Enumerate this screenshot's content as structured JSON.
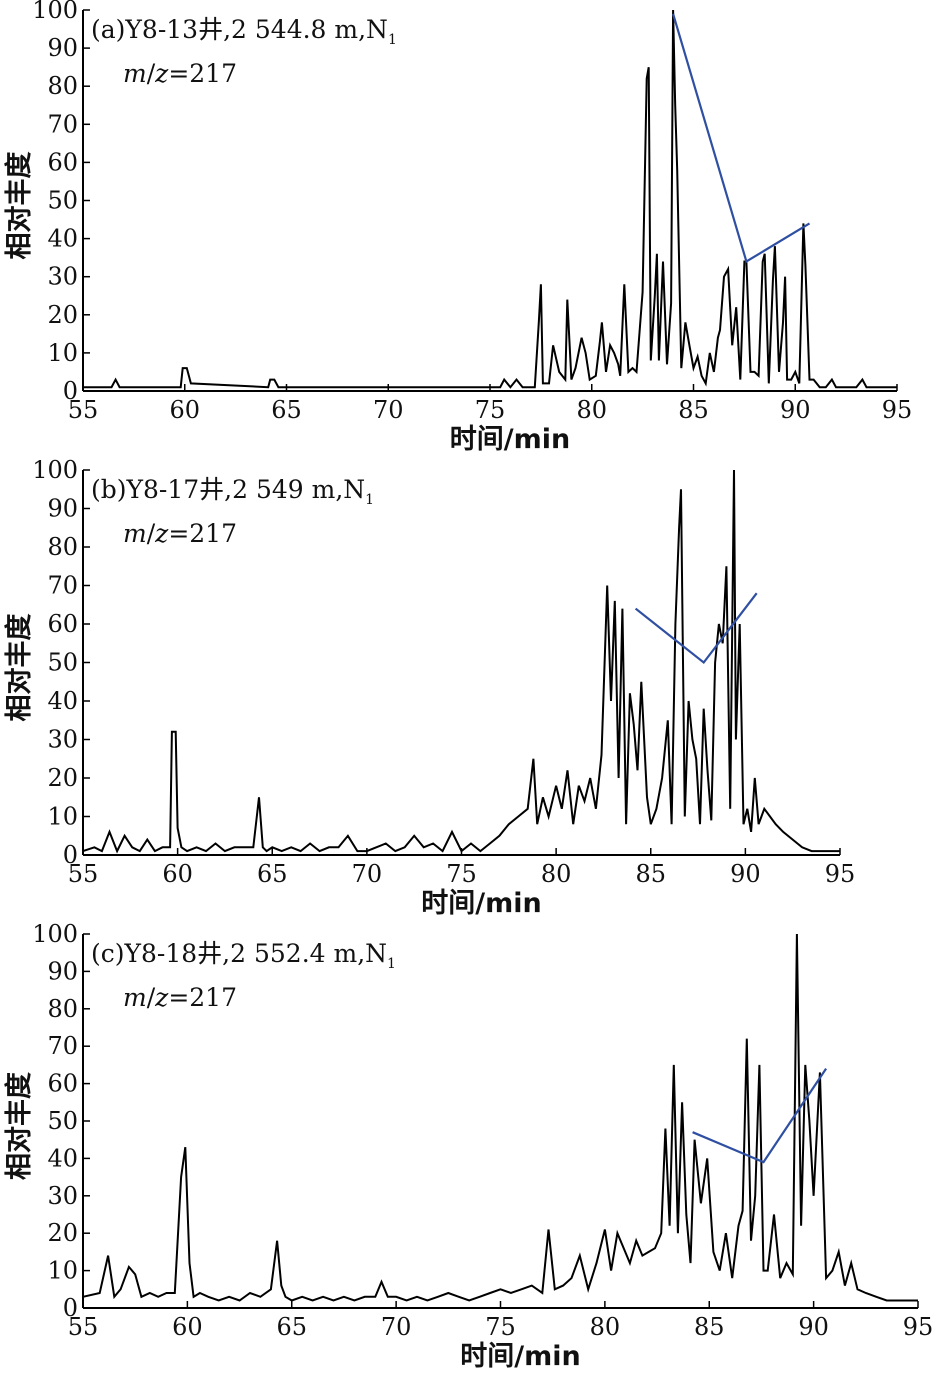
{
  "chart_data": [
    {
      "type": "line",
      "label": "(a)Y8-13井,2 544.8 m,N",
      "label_sub": "1",
      "mz_prefix": "m",
      "mz_z": "z",
      "mz_value": "=217",
      "xlabel": "时间/min",
      "ylabel": "相对丰度",
      "xlim": [
        55,
        95
      ],
      "ylim": [
        0,
        100
      ],
      "x_ticks": [
        "55",
        "60",
        "65",
        "70",
        "75",
        "80",
        "85",
        "90",
        "95"
      ],
      "y_ticks": [
        "0",
        "10",
        "20",
        "30",
        "40",
        "50",
        "60",
        "70",
        "80",
        "90",
        "100"
      ],
      "series": [
        {
          "role": "chromatogram",
          "color": "#000000",
          "x": [
            55,
            56.4,
            56.6,
            56.8,
            57,
            57.5,
            59.8,
            59.9,
            60.1,
            60.3,
            64.1,
            64.2,
            64.4,
            64.6,
            75.5,
            75.7,
            76,
            76.3,
            76.6,
            77.2,
            77.4,
            77.5,
            77.6,
            77.9,
            78.1,
            78.4,
            78.7,
            78.8,
            79,
            79.2,
            79.5,
            79.7,
            79.9,
            80.2,
            80.4,
            80.5,
            80.7,
            80.9,
            81.1,
            81.3,
            81.4,
            81.6,
            81.8,
            82,
            82.2,
            82.5,
            82.7,
            82.8,
            82.9,
            83.1,
            83.2,
            83.3,
            83.5,
            83.7,
            83.9,
            84,
            84.1,
            84.2,
            84.4,
            84.6,
            84.8,
            85,
            85.2,
            85.4,
            85.6,
            85.8,
            86,
            86.2,
            86.3,
            86.5,
            86.7,
            86.9,
            87.1,
            87.3,
            87.5,
            87.6,
            87.8,
            88,
            88.2,
            88.4,
            88.5,
            88.7,
            88.9,
            89,
            89.2,
            89.4,
            89.5,
            89.6,
            89.8,
            90,
            90.2,
            90.4,
            90.5,
            90.7,
            90.9,
            91.2,
            91.5,
            91.8,
            92,
            92.5,
            93,
            93.3,
            93.5,
            95
          ],
          "y": [
            1,
            1,
            3,
            1,
            1,
            1,
            1,
            6,
            6,
            2,
            1,
            3,
            3,
            1,
            1,
            3,
            1,
            3,
            1,
            1,
            18,
            28,
            2,
            2,
            12,
            5,
            3,
            24,
            3,
            6,
            14,
            10,
            3,
            4,
            13,
            18,
            5,
            12,
            10,
            7,
            4,
            28,
            5,
            6,
            5,
            26,
            82,
            85,
            8,
            25,
            36,
            8,
            34,
            7,
            23,
            100,
            75,
            58,
            6,
            18,
            12,
            6,
            9,
            4,
            2,
            10,
            5,
            14,
            16,
            30,
            32,
            12,
            22,
            3,
            34,
            34,
            5,
            5,
            4,
            34,
            36,
            2,
            29,
            38,
            5,
            18,
            30,
            3,
            3,
            5,
            2,
            44,
            33,
            3,
            3,
            1,
            1,
            3,
            1,
            1,
            1,
            3,
            1,
            1
          ]
        },
        {
          "role": "overlay",
          "color": "#2f4fa2",
          "x": [
            84,
            87.6,
            90.7
          ],
          "y": [
            99,
            34,
            44
          ]
        }
      ]
    },
    {
      "type": "line",
      "label": "(b)Y8-17井,2 549 m,N",
      "label_sub": "1",
      "mz_prefix": "m",
      "mz_z": "z",
      "mz_value": "=217",
      "xlabel": "时间/min",
      "ylabel": "相对丰度",
      "xlim": [
        55,
        95
      ],
      "ylim": [
        0,
        100
      ],
      "x_ticks": [
        "55",
        "60",
        "65",
        "70",
        "75",
        "80",
        "85",
        "90",
        "95"
      ],
      "y_ticks": [
        "0",
        "10",
        "20",
        "30",
        "40",
        "50",
        "60",
        "70",
        "80",
        "90",
        "100"
      ],
      "series": [
        {
          "role": "chromatogram",
          "color": "#000000",
          "x": [
            55,
            55.6,
            56,
            56.4,
            56.8,
            57.2,
            57.6,
            58,
            58.4,
            58.8,
            59.2,
            59.6,
            59.7,
            59.9,
            60,
            60.2,
            60.5,
            61,
            61.5,
            62,
            62.5,
            63,
            63.5,
            64,
            64.3,
            64.5,
            64.7,
            65,
            65.5,
            66,
            66.5,
            67,
            67.5,
            68,
            68.5,
            69,
            69.5,
            70,
            70.5,
            71,
            71.5,
            72,
            72.5,
            73,
            73.5,
            74,
            74.5,
            75,
            75.5,
            76,
            76.5,
            77,
            77.5,
            78,
            78.5,
            78.8,
            79,
            79.3,
            79.6,
            80,
            80.3,
            80.6,
            80.9,
            81.2,
            81.5,
            81.8,
            82.1,
            82.4,
            82.7,
            82.9,
            83.1,
            83.3,
            83.5,
            83.7,
            83.9,
            84.1,
            84.3,
            84.5,
            84.8,
            85,
            85.3,
            85.6,
            85.9,
            86.1,
            86.3,
            86.5,
            86.6,
            86.8,
            87,
            87.2,
            87.4,
            87.6,
            87.8,
            88,
            88.2,
            88.4,
            88.6,
            88.8,
            89,
            89.2,
            89.4,
            89.5,
            89.7,
            89.9,
            90.1,
            90.3,
            90.5,
            90.7,
            91,
            91.3,
            91.6,
            92,
            92.5,
            93,
            93.5,
            95
          ],
          "y": [
            1,
            2,
            1,
            6,
            1,
            5,
            2,
            1,
            4,
            1,
            2,
            2,
            32,
            32,
            7,
            2,
            1,
            2,
            1,
            3,
            1,
            2,
            2,
            2,
            15,
            2,
            1,
            2,
            1,
            2,
            1,
            3,
            1,
            2,
            2,
            5,
            1,
            1,
            2,
            3,
            1,
            2,
            5,
            2,
            3,
            1,
            6,
            1,
            3,
            1,
            3,
            5,
            8,
            10,
            12,
            25,
            8,
            15,
            10,
            18,
            12,
            22,
            8,
            18,
            14,
            20,
            12,
            26,
            70,
            40,
            66,
            20,
            64,
            8,
            42,
            34,
            22,
            45,
            15,
            8,
            12,
            20,
            35,
            8,
            60,
            85,
            95,
            10,
            40,
            30,
            25,
            8,
            38,
            22,
            9,
            50,
            60,
            55,
            75,
            12,
            100,
            30,
            60,
            8,
            12,
            6,
            20,
            8,
            12,
            10,
            8,
            6,
            4,
            2,
            1,
            1
          ]
        },
        {
          "role": "overlay",
          "color": "#2f4fa2",
          "x": [
            84.2,
            87.8,
            90.6
          ],
          "y": [
            64,
            50,
            68
          ]
        }
      ]
    },
    {
      "type": "line",
      "label": "(c)Y8-18井,2 552.4 m,N",
      "label_sub": "1",
      "mz_prefix": "m",
      "mz_z": "z",
      "mz_value": "=217",
      "xlabel": "时间/min",
      "ylabel": "相对丰度",
      "xlim": [
        55,
        95
      ],
      "ylim": [
        0,
        100
      ],
      "x_ticks": [
        "55",
        "60",
        "65",
        "70",
        "75",
        "80",
        "85",
        "90",
        "95"
      ],
      "y_ticks": [
        "0",
        "10",
        "20",
        "30",
        "40",
        "50",
        "60",
        "70",
        "80",
        "90",
        "100"
      ],
      "series": [
        {
          "role": "chromatogram",
          "color": "#000000",
          "x": [
            55,
            55.8,
            56.2,
            56.5,
            56.8,
            57.2,
            57.5,
            57.8,
            58.2,
            58.6,
            59,
            59.4,
            59.7,
            59.9,
            60.1,
            60.3,
            60.6,
            61,
            61.5,
            62,
            62.5,
            63,
            63.5,
            64,
            64.3,
            64.5,
            64.7,
            65,
            65.5,
            66,
            66.5,
            67,
            67.5,
            68,
            68.5,
            69,
            69.3,
            69.6,
            70,
            70.5,
            71,
            71.5,
            72,
            72.5,
            73,
            73.5,
            74,
            74.5,
            75,
            75.5,
            76,
            76.5,
            77,
            77.3,
            77.6,
            78,
            78.4,
            78.8,
            79.2,
            79.6,
            80,
            80.3,
            80.6,
            80.9,
            81.2,
            81.5,
            81.8,
            82.1,
            82.4,
            82.7,
            82.9,
            83.1,
            83.3,
            83.5,
            83.7,
            83.9,
            84.1,
            84.3,
            84.6,
            84.9,
            85.2,
            85.5,
            85.8,
            86.1,
            86.4,
            86.6,
            86.8,
            87,
            87.2,
            87.4,
            87.6,
            87.8,
            88.1,
            88.4,
            88.7,
            89,
            89.2,
            89.4,
            89.6,
            89.8,
            90,
            90.3,
            90.6,
            90.9,
            91.2,
            91.5,
            91.8,
            92.1,
            92.5,
            93,
            93.5,
            94,
            95
          ],
          "y": [
            3,
            4,
            14,
            3,
            5,
            11,
            9,
            3,
            4,
            3,
            4,
            4,
            35,
            43,
            12,
            3,
            4,
            3,
            2,
            3,
            2,
            4,
            3,
            5,
            18,
            6,
            3,
            2,
            3,
            2,
            3,
            2,
            3,
            2,
            3,
            3,
            7,
            3,
            3,
            2,
            3,
            2,
            3,
            4,
            3,
            2,
            3,
            4,
            5,
            4,
            5,
            6,
            4,
            21,
            5,
            6,
            8,
            14,
            5,
            12,
            21,
            10,
            20,
            16,
            12,
            18,
            14,
            15,
            16,
            20,
            48,
            22,
            65,
            20,
            55,
            25,
            12,
            45,
            28,
            40,
            15,
            10,
            20,
            8,
            22,
            26,
            72,
            18,
            30,
            65,
            10,
            10,
            25,
            8,
            12,
            9,
            100,
            22,
            65,
            50,
            30,
            63,
            8,
            10,
            15,
            6,
            12,
            5,
            4,
            3,
            2,
            2,
            2
          ]
        },
        {
          "role": "overlay",
          "color": "#2f4fa2",
          "x": [
            84.2,
            87.6,
            90.6
          ],
          "y": [
            47,
            39,
            64
          ]
        }
      ]
    }
  ]
}
